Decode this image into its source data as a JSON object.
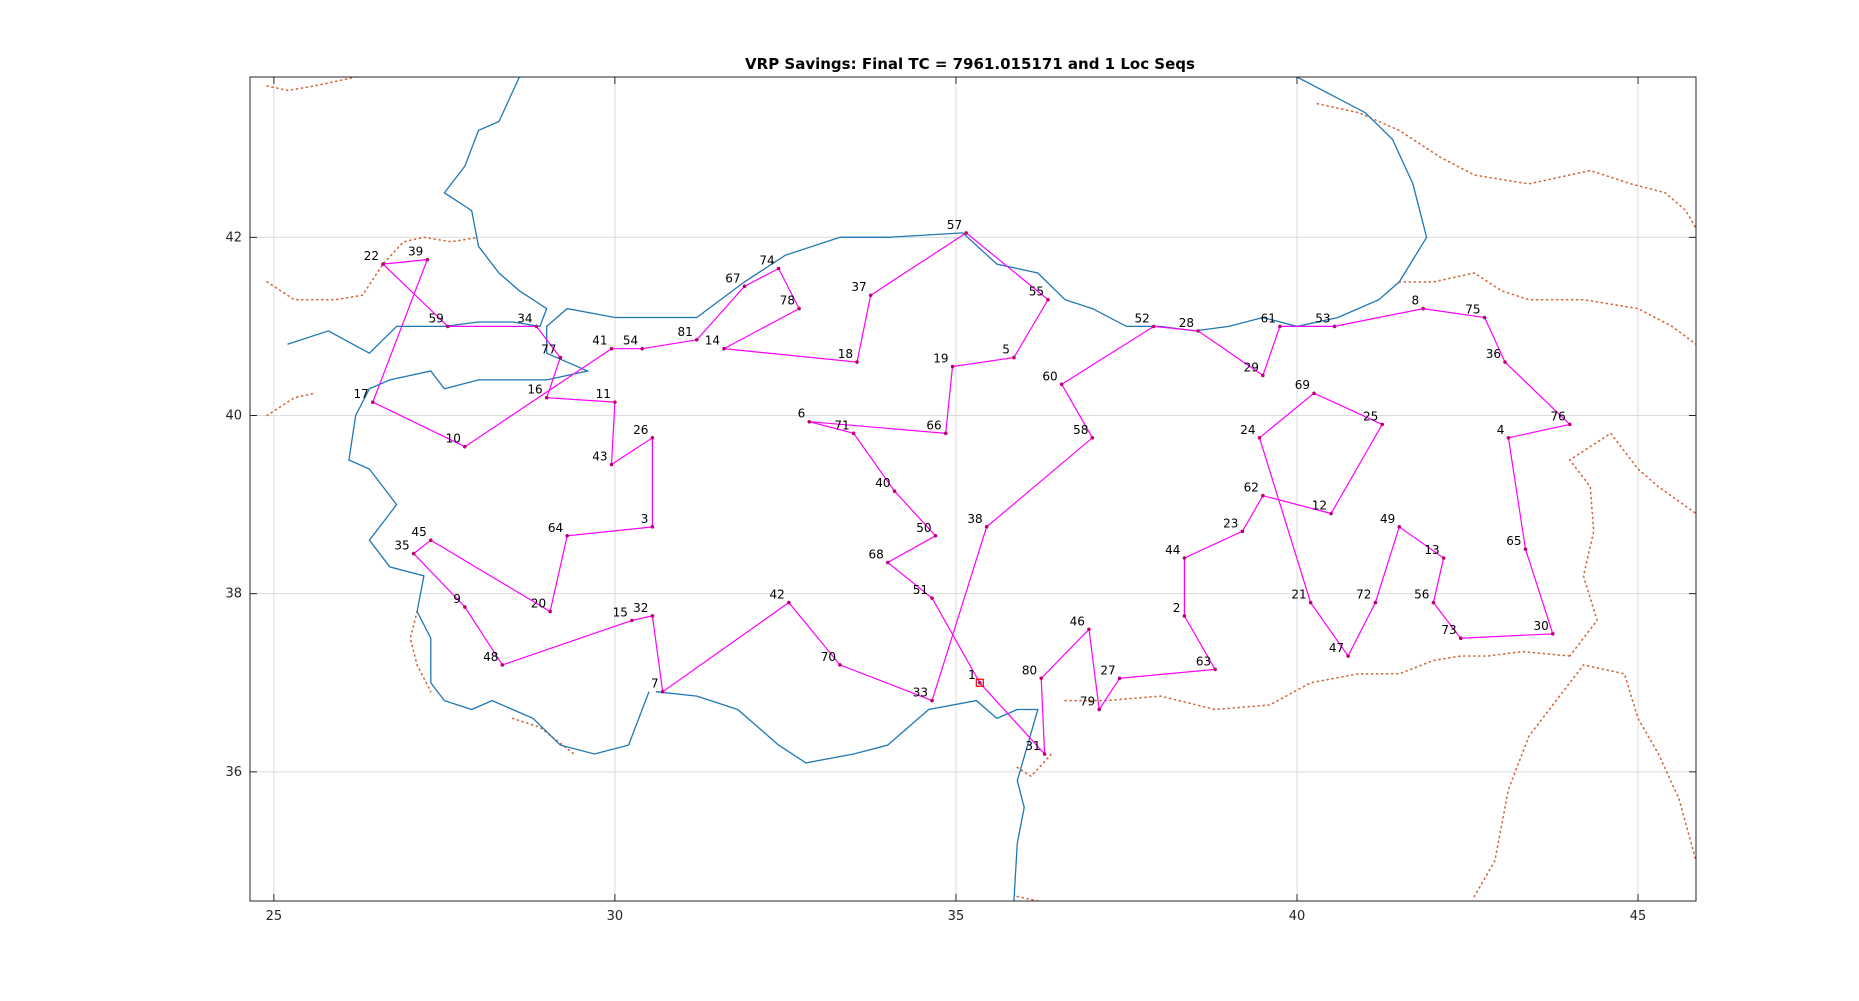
{
  "chart_data": {
    "type": "line",
    "title": "VRP Savings: Final TC = 7961.015171 and 1 Loc Seqs",
    "xlim": [
      24.65,
      45.85
    ],
    "ylim": [
      34.55,
      43.8
    ],
    "xticks": [
      25,
      30,
      35,
      40,
      45
    ],
    "yticks": [
      36,
      38,
      40,
      42
    ],
    "grid": true,
    "colors": {
      "route": "#ff00ff",
      "coast": "#1f77b4",
      "border": "#d4643a",
      "depot": "#ff0000"
    },
    "depot": {
      "label": "1",
      "x": 35.35,
      "y": 37.0
    },
    "stops": [
      {
        "label": "1",
        "x": 35.35,
        "y": 37.0
      },
      {
        "label": "2",
        "x": 38.35,
        "y": 37.75
      },
      {
        "label": "3",
        "x": 30.55,
        "y": 38.75
      },
      {
        "label": "4",
        "x": 43.1,
        "y": 39.75
      },
      {
        "label": "5",
        "x": 35.85,
        "y": 40.65
      },
      {
        "label": "6",
        "x": 32.85,
        "y": 39.93
      },
      {
        "label": "7",
        "x": 30.7,
        "y": 36.9
      },
      {
        "label": "8",
        "x": 41.85,
        "y": 41.2
      },
      {
        "label": "9",
        "x": 27.8,
        "y": 37.85
      },
      {
        "label": "10",
        "x": 27.8,
        "y": 39.65
      },
      {
        "label": "11",
        "x": 30.0,
        "y": 40.15
      },
      {
        "label": "12",
        "x": 40.5,
        "y": 38.9
      },
      {
        "label": "13",
        "x": 42.15,
        "y": 38.4
      },
      {
        "label": "14",
        "x": 31.6,
        "y": 40.75
      },
      {
        "label": "15",
        "x": 30.25,
        "y": 37.7
      },
      {
        "label": "16",
        "x": 29.0,
        "y": 40.2
      },
      {
        "label": "17",
        "x": 26.45,
        "y": 40.15
      },
      {
        "label": "18",
        "x": 33.55,
        "y": 40.6
      },
      {
        "label": "19",
        "x": 34.95,
        "y": 40.55
      },
      {
        "label": "20",
        "x": 29.05,
        "y": 37.8
      },
      {
        "label": "21",
        "x": 40.2,
        "y": 37.9
      },
      {
        "label": "22",
        "x": 26.6,
        "y": 41.7
      },
      {
        "label": "23",
        "x": 39.2,
        "y": 38.7
      },
      {
        "label": "24",
        "x": 39.45,
        "y": 39.75
      },
      {
        "label": "25",
        "x": 41.25,
        "y": 39.9
      },
      {
        "label": "26",
        "x": 30.55,
        "y": 39.75
      },
      {
        "label": "27",
        "x": 37.4,
        "y": 37.05
      },
      {
        "label": "28",
        "x": 38.55,
        "y": 40.95
      },
      {
        "label": "29",
        "x": 39.5,
        "y": 40.45
      },
      {
        "label": "30",
        "x": 43.75,
        "y": 37.55
      },
      {
        "label": "31",
        "x": 36.3,
        "y": 36.2
      },
      {
        "label": "32",
        "x": 30.55,
        "y": 37.75
      },
      {
        "label": "33",
        "x": 34.65,
        "y": 36.8
      },
      {
        "label": "34",
        "x": 28.85,
        "y": 41.0
      },
      {
        "label": "35",
        "x": 27.05,
        "y": 38.45
      },
      {
        "label": "36",
        "x": 43.05,
        "y": 40.6
      },
      {
        "label": "37",
        "x": 33.75,
        "y": 41.35
      },
      {
        "label": "38",
        "x": 35.45,
        "y": 38.75
      },
      {
        "label": "39",
        "x": 27.25,
        "y": 41.75
      },
      {
        "label": "40",
        "x": 34.1,
        "y": 39.15
      },
      {
        "label": "41",
        "x": 29.95,
        "y": 40.75
      },
      {
        "label": "42",
        "x": 32.55,
        "y": 37.9
      },
      {
        "label": "43",
        "x": 29.95,
        "y": 39.45
      },
      {
        "label": "44",
        "x": 38.35,
        "y": 38.4
      },
      {
        "label": "45",
        "x": 27.3,
        "y": 38.6
      },
      {
        "label": "46",
        "x": 36.95,
        "y": 37.6
      },
      {
        "label": "47",
        "x": 40.75,
        "y": 37.3
      },
      {
        "label": "48",
        "x": 28.35,
        "y": 37.2
      },
      {
        "label": "49",
        "x": 41.5,
        "y": 38.75
      },
      {
        "label": "50",
        "x": 34.7,
        "y": 38.65
      },
      {
        "label": "51",
        "x": 34.65,
        "y": 37.95
      },
      {
        "label": "52",
        "x": 37.9,
        "y": 41.0
      },
      {
        "label": "53",
        "x": 40.55,
        "y": 41.0
      },
      {
        "label": "54",
        "x": 30.4,
        "y": 40.75
      },
      {
        "label": "55",
        "x": 36.35,
        "y": 41.3
      },
      {
        "label": "56",
        "x": 42.0,
        "y": 37.9
      },
      {
        "label": "57",
        "x": 35.15,
        "y": 42.05
      },
      {
        "label": "58",
        "x": 37.0,
        "y": 39.75
      },
      {
        "label": "59",
        "x": 27.55,
        "y": 41.0
      },
      {
        "label": "60",
        "x": 36.55,
        "y": 40.35
      },
      {
        "label": "61",
        "x": 39.75,
        "y": 41.0
      },
      {
        "label": "62",
        "x": 39.5,
        "y": 39.1
      },
      {
        "label": "63",
        "x": 38.8,
        "y": 37.15
      },
      {
        "label": "64",
        "x": 29.3,
        "y": 38.65
      },
      {
        "label": "65",
        "x": 43.35,
        "y": 38.5
      },
      {
        "label": "66",
        "x": 34.85,
        "y": 39.8
      },
      {
        "label": "67",
        "x": 31.9,
        "y": 41.45
      },
      {
        "label": "68",
        "x": 34.0,
        "y": 38.35
      },
      {
        "label": "69",
        "x": 40.25,
        "y": 40.25
      },
      {
        "label": "70",
        "x": 33.3,
        "y": 37.2
      },
      {
        "label": "71",
        "x": 33.5,
        "y": 39.8
      },
      {
        "label": "72",
        "x": 41.15,
        "y": 37.9
      },
      {
        "label": "73",
        "x": 42.4,
        "y": 37.5
      },
      {
        "label": "74",
        "x": 32.4,
        "y": 41.65
      },
      {
        "label": "75",
        "x": 42.75,
        "y": 41.1
      },
      {
        "label": "76",
        "x": 44.0,
        "y": 39.9
      },
      {
        "label": "77",
        "x": 29.2,
        "y": 40.65
      },
      {
        "label": "78",
        "x": 32.7,
        "y": 41.2
      },
      {
        "label": "79",
        "x": 37.1,
        "y": 36.7
      },
      {
        "label": "80",
        "x": 36.25,
        "y": 37.05
      },
      {
        "label": "81",
        "x": 31.2,
        "y": 40.85
      }
    ],
    "route": [
      1,
      31,
      80,
      46,
      79,
      27,
      63,
      2,
      44,
      23,
      62,
      12,
      25,
      69,
      24,
      21,
      47,
      72,
      49,
      13,
      56,
      73,
      30,
      65,
      4,
      76,
      36,
      75,
      8,
      53,
      61,
      29,
      28,
      52,
      60,
      58,
      38,
      33,
      70,
      42,
      7,
      32,
      15,
      48,
      9,
      35,
      45,
      20,
      64,
      3,
      26,
      43,
      11,
      16,
      77,
      34,
      59,
      22,
      39,
      17,
      10,
      41,
      54,
      81,
      67,
      74,
      78,
      14,
      18,
      37,
      57,
      55,
      5,
      19,
      66,
      6,
      71,
      40,
      50,
      68,
      51,
      1
    ],
    "coastlines": [
      [
        [
          30.5,
          36.9
        ],
        [
          30.2,
          36.3
        ],
        [
          29.7,
          36.2
        ],
        [
          29.2,
          36.3
        ],
        [
          28.8,
          36.6
        ],
        [
          28.2,
          36.8
        ],
        [
          27.9,
          36.7
        ],
        [
          27.5,
          36.8
        ],
        [
          27.3,
          37.0
        ],
        [
          27.3,
          37.5
        ],
        [
          27.1,
          37.8
        ],
        [
          27.2,
          38.2
        ],
        [
          26.7,
          38.3
        ],
        [
          26.4,
          38.6
        ],
        [
          26.8,
          39.0
        ],
        [
          26.4,
          39.4
        ],
        [
          26.1,
          39.5
        ],
        [
          26.2,
          40.0
        ],
        [
          26.4,
          40.3
        ],
        [
          26.7,
          40.4
        ],
        [
          27.3,
          40.5
        ],
        [
          27.5,
          40.3
        ],
        [
          28.0,
          40.4
        ],
        [
          28.5,
          40.4
        ],
        [
          29.0,
          40.4
        ],
        [
          29.6,
          40.5
        ],
        [
          29.0,
          40.7
        ],
        [
          29.0,
          41.0
        ],
        [
          29.3,
          41.2
        ],
        [
          30.0,
          41.1
        ],
        [
          30.5,
          41.1
        ],
        [
          31.2,
          41.1
        ],
        [
          31.9,
          41.5
        ],
        [
          32.5,
          41.8
        ],
        [
          33.3,
          42.0
        ],
        [
          34.0,
          42.0
        ],
        [
          35.1,
          42.05
        ],
        [
          35.6,
          41.7
        ],
        [
          36.2,
          41.6
        ],
        [
          36.6,
          41.3
        ],
        [
          37.0,
          41.2
        ],
        [
          37.5,
          41.0
        ],
        [
          38.0,
          41.0
        ],
        [
          38.5,
          40.95
        ],
        [
          39.0,
          41.0
        ],
        [
          39.5,
          41.1
        ],
        [
          40.0,
          41.0
        ],
        [
          40.6,
          41.1
        ],
        [
          41.2,
          41.3
        ],
        [
          41.5,
          41.5
        ],
        [
          41.9,
          42.0
        ],
        [
          41.7,
          42.6
        ],
        [
          41.4,
          43.1
        ],
        [
          41.0,
          43.4
        ],
        [
          40.5,
          43.6
        ],
        [
          40.0,
          43.8
        ]
      ],
      [
        [
          25.2,
          40.8
        ],
        [
          25.8,
          40.95
        ],
        [
          26.4,
          40.7
        ],
        [
          26.8,
          41.0
        ],
        [
          27.5,
          41.0
        ],
        [
          28.0,
          41.05
        ],
        [
          28.5,
          41.05
        ],
        [
          28.9,
          41.0
        ],
        [
          29.0,
          41.2
        ],
        [
          28.6,
          41.4
        ],
        [
          28.3,
          41.6
        ],
        [
          28.0,
          41.9
        ],
        [
          27.9,
          42.3
        ],
        [
          27.5,
          42.5
        ],
        [
          27.8,
          42.8
        ],
        [
          28.0,
          43.2
        ],
        [
          28.3,
          43.3
        ],
        [
          28.6,
          43.8
        ]
      ],
      [
        [
          30.6,
          36.9
        ],
        [
          31.2,
          36.85
        ],
        [
          31.8,
          36.7
        ],
        [
          32.4,
          36.3
        ],
        [
          32.8,
          36.1
        ],
        [
          33.5,
          36.2
        ],
        [
          34.0,
          36.3
        ],
        [
          34.6,
          36.7
        ],
        [
          35.3,
          36.8
        ],
        [
          35.6,
          36.6
        ],
        [
          35.9,
          36.7
        ],
        [
          36.2,
          36.7
        ],
        [
          36.05,
          36.3
        ],
        [
          35.9,
          35.9
        ],
        [
          36.0,
          35.6
        ],
        [
          35.9,
          35.2
        ],
        [
          35.85,
          34.55
        ]
      ]
    ],
    "borders": [
      [
        [
          24.9,
          43.7
        ],
        [
          25.2,
          43.65
        ],
        [
          25.6,
          43.7
        ],
        [
          26.2,
          43.8
        ]
      ],
      [
        [
          24.9,
          41.5
        ],
        [
          25.3,
          41.3
        ],
        [
          25.9,
          41.3
        ],
        [
          26.3,
          41.35
        ],
        [
          26.6,
          41.7
        ],
        [
          26.9,
          41.95
        ],
        [
          27.2,
          42.0
        ],
        [
          27.6,
          41.95
        ],
        [
          28.0,
          42.0
        ]
      ],
      [
        [
          24.9,
          40.0
        ],
        [
          25.3,
          40.2
        ],
        [
          25.6,
          40.25
        ]
      ],
      [
        [
          27.1,
          37.8
        ],
        [
          27.0,
          37.5
        ],
        [
          27.1,
          37.2
        ],
        [
          27.3,
          36.9
        ]
      ],
      [
        [
          28.5,
          36.6
        ],
        [
          28.9,
          36.5
        ],
        [
          29.4,
          36.2
        ]
      ],
      [
        [
          35.9,
          36.05
        ],
        [
          36.1,
          35.95
        ],
        [
          36.4,
          36.2
        ]
      ],
      [
        [
          35.9,
          34.6
        ],
        [
          36.2,
          34.55
        ]
      ],
      [
        [
          36.6,
          36.8
        ],
        [
          37.2,
          36.8
        ],
        [
          38.0,
          36.85
        ],
        [
          38.8,
          36.7
        ],
        [
          39.6,
          36.75
        ],
        [
          40.2,
          37.0
        ],
        [
          40.9,
          37.1
        ],
        [
          41.5,
          37.1
        ],
        [
          42.0,
          37.25
        ],
        [
          42.4,
          37.3
        ],
        [
          42.8,
          37.3
        ],
        [
          43.3,
          37.35
        ],
        [
          44.0,
          37.3
        ]
      ],
      [
        [
          44.0,
          37.3
        ],
        [
          44.4,
          37.7
        ],
        [
          44.2,
          38.2
        ],
        [
          44.35,
          38.7
        ],
        [
          44.3,
          39.2
        ],
        [
          44.0,
          39.5
        ],
        [
          44.6,
          39.8
        ],
        [
          45.0,
          39.4
        ],
        [
          45.3,
          39.2
        ],
        [
          45.85,
          38.9
        ]
      ],
      [
        [
          42.6,
          34.6
        ],
        [
          42.9,
          35.0
        ],
        [
          43.1,
          35.8
        ],
        [
          43.4,
          36.4
        ],
        [
          43.9,
          36.9
        ],
        [
          44.2,
          37.2
        ],
        [
          44.8,
          37.1
        ],
        [
          45.0,
          36.6
        ],
        [
          45.3,
          36.2
        ],
        [
          45.6,
          35.7
        ],
        [
          45.85,
          35.0
        ]
      ],
      [
        [
          40.3,
          43.5
        ],
        [
          40.9,
          43.4
        ],
        [
          41.5,
          43.2
        ],
        [
          42.1,
          42.9
        ],
        [
          42.6,
          42.7
        ],
        [
          43.4,
          42.6
        ],
        [
          44.3,
          42.75
        ],
        [
          44.9,
          42.6
        ],
        [
          45.4,
          42.5
        ],
        [
          45.7,
          42.3
        ],
        [
          45.85,
          42.1
        ]
      ],
      [
        [
          41.5,
          41.5
        ],
        [
          42.0,
          41.5
        ],
        [
          42.6,
          41.6
        ],
        [
          43.0,
          41.4
        ],
        [
          43.4,
          41.3
        ],
        [
          44.2,
          41.3
        ],
        [
          45.0,
          41.2
        ],
        [
          45.5,
          41.0
        ],
        [
          45.85,
          40.8
        ]
      ]
    ]
  }
}
